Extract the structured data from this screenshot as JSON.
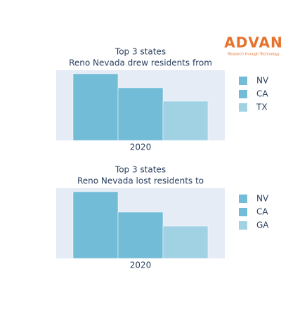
{
  "logo": {
    "text": "ADVAN",
    "tagline": "Research through Technology"
  },
  "chart_data": [
    {
      "type": "bar",
      "title": "Top 3 states",
      "subtitle": "Reno Nevada drew residents from",
      "categories": [
        "2020"
      ],
      "ylim": [
        0,
        100
      ],
      "series": [
        {
          "name": "NV",
          "color": "#72bcd8",
          "values": [
            95
          ]
        },
        {
          "name": "CA",
          "color": "#72bcd8",
          "values": [
            75
          ]
        },
        {
          "name": "TX",
          "color": "#a0d2e4",
          "values": [
            56
          ]
        }
      ]
    },
    {
      "type": "bar",
      "title": "Top 3 states",
      "subtitle": "Reno Nevada lost residents to",
      "categories": [
        "2020"
      ],
      "ylim": [
        0,
        100
      ],
      "series": [
        {
          "name": "NV",
          "color": "#72bcd8",
          "values": [
            95
          ]
        },
        {
          "name": "CA",
          "color": "#72bcd8",
          "values": [
            66
          ]
        },
        {
          "name": "GA",
          "color": "#a0d2e4",
          "values": [
            46
          ]
        }
      ]
    }
  ]
}
